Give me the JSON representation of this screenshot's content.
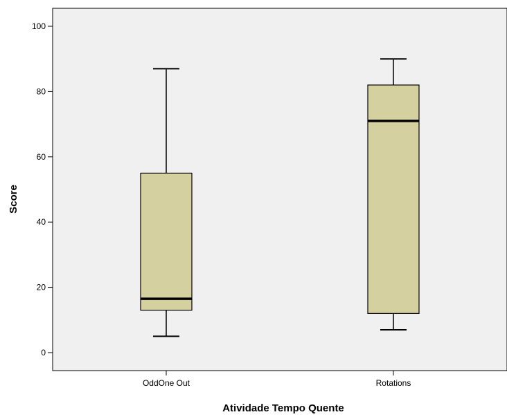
{
  "chart_data": {
    "type": "boxplot",
    "title": "",
    "xlabel": "Atividade Tempo Quente",
    "ylabel": "Score",
    "ylim": [
      -5,
      105
    ],
    "yticks": [
      0,
      20,
      40,
      60,
      80,
      100
    ],
    "grid": false,
    "colors": {
      "plot_background": "#f0f0f0",
      "box_fill": "#d5d09f",
      "stroke": "#000000"
    },
    "categories": [
      "OddOne Out",
      "Rotations"
    ],
    "boxes": [
      {
        "category": "OddOne Out",
        "min": 5,
        "q1": 13,
        "median": 16.5,
        "q3": 55,
        "max": 87
      },
      {
        "category": "Rotations",
        "min": 7,
        "q1": 12,
        "median": 71,
        "q3": 82,
        "max": 90
      }
    ]
  }
}
